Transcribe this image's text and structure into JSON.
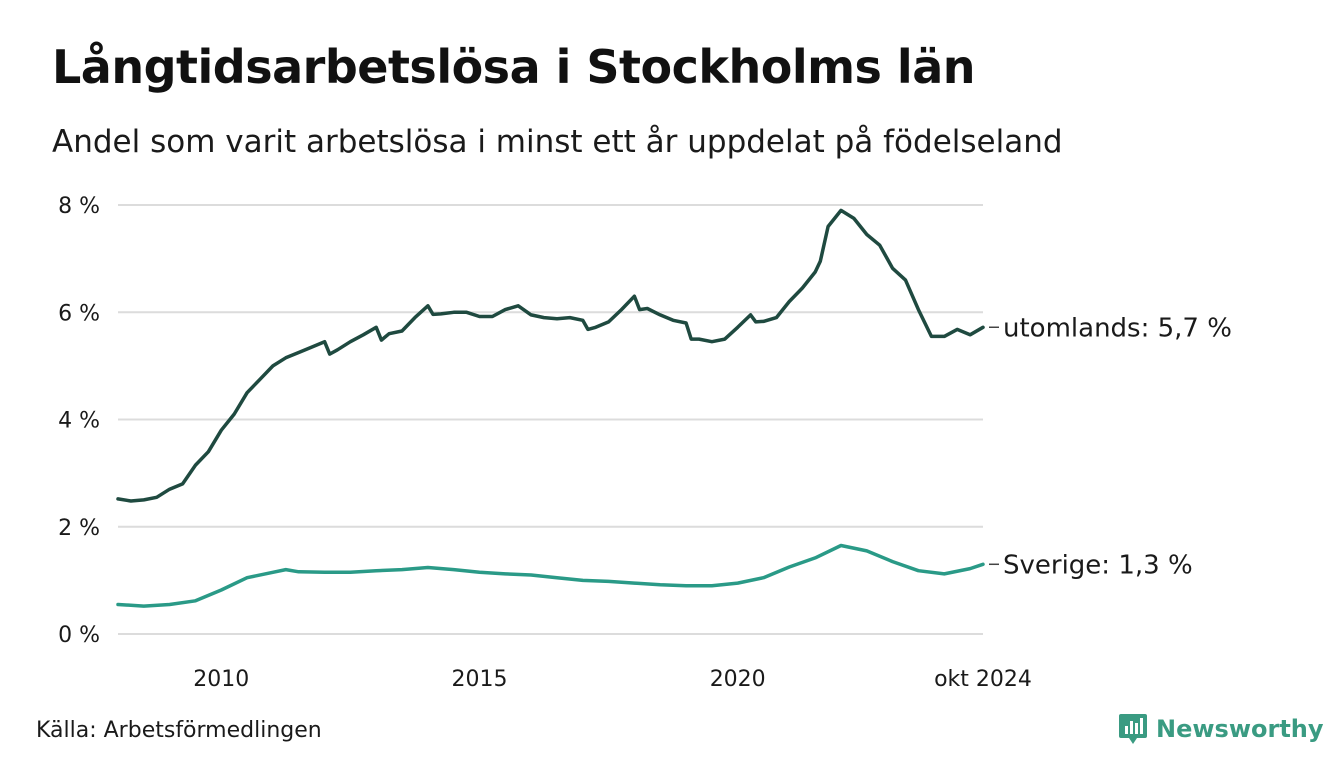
{
  "title": "Långtidsarbetslösa i Stockholms län",
  "subtitle": "Andel som varit arbetslösa i minst ett år uppdelat på födelseland",
  "source": "Källa: Arbetsförmedlingen",
  "brand": {
    "name": "Newsworthy",
    "logo_icon": "bar-chart-speech-bubble-icon",
    "color": "#3a9b82"
  },
  "chart_data": {
    "type": "line",
    "title": "Långtidsarbetslösa i Stockholms län",
    "xlabel": "",
    "ylabel": "",
    "xlim": [
      2008.0,
      2024.75
    ],
    "ylim": [
      0,
      8
    ],
    "grid": true,
    "y_ticks": [
      {
        "value": 0,
        "label": "0 %"
      },
      {
        "value": 2,
        "label": "2 %"
      },
      {
        "value": 4,
        "label": "4 %"
      },
      {
        "value": 6,
        "label": "6 %"
      },
      {
        "value": 8,
        "label": "8 %"
      }
    ],
    "x_ticks": [
      {
        "value": 2010,
        "label": "2010"
      },
      {
        "value": 2015,
        "label": "2015"
      },
      {
        "value": 2020,
        "label": "2020"
      },
      {
        "value": 2024.75,
        "label": "okt 2024"
      }
    ],
    "series": [
      {
        "name": "utomlands",
        "end_label": "utomlands: 5,7 %",
        "color": "#1f4a40",
        "points": [
          [
            2008.0,
            2.52
          ],
          [
            2008.25,
            2.48
          ],
          [
            2008.5,
            2.5
          ],
          [
            2008.75,
            2.55
          ],
          [
            2009.0,
            2.7
          ],
          [
            2009.25,
            2.8
          ],
          [
            2009.5,
            3.15
          ],
          [
            2009.75,
            3.4
          ],
          [
            2010.0,
            3.8
          ],
          [
            2010.25,
            4.1
          ],
          [
            2010.5,
            4.5
          ],
          [
            2010.75,
            4.75
          ],
          [
            2011.0,
            5.0
          ],
          [
            2011.25,
            5.15
          ],
          [
            2011.5,
            5.25
          ],
          [
            2011.75,
            5.35
          ],
          [
            2012.0,
            5.45
          ],
          [
            2012.1,
            5.22
          ],
          [
            2012.25,
            5.3
          ],
          [
            2012.5,
            5.45
          ],
          [
            2012.75,
            5.58
          ],
          [
            2013.0,
            5.72
          ],
          [
            2013.1,
            5.48
          ],
          [
            2013.25,
            5.6
          ],
          [
            2013.5,
            5.65
          ],
          [
            2013.75,
            5.9
          ],
          [
            2014.0,
            6.12
          ],
          [
            2014.1,
            5.96
          ],
          [
            2014.25,
            5.97
          ],
          [
            2014.5,
            6.0
          ],
          [
            2014.75,
            6.0
          ],
          [
            2015.0,
            5.92
          ],
          [
            2015.25,
            5.92
          ],
          [
            2015.5,
            6.05
          ],
          [
            2015.75,
            6.12
          ],
          [
            2016.0,
            5.95
          ],
          [
            2016.25,
            5.9
          ],
          [
            2016.5,
            5.88
          ],
          [
            2016.75,
            5.9
          ],
          [
            2017.0,
            5.85
          ],
          [
            2017.1,
            5.68
          ],
          [
            2017.25,
            5.72
          ],
          [
            2017.5,
            5.82
          ],
          [
            2017.75,
            6.05
          ],
          [
            2018.0,
            6.3
          ],
          [
            2018.1,
            6.05
          ],
          [
            2018.25,
            6.07
          ],
          [
            2018.5,
            5.95
          ],
          [
            2018.75,
            5.85
          ],
          [
            2019.0,
            5.8
          ],
          [
            2019.1,
            5.5
          ],
          [
            2019.25,
            5.5
          ],
          [
            2019.5,
            5.45
          ],
          [
            2019.75,
            5.5
          ],
          [
            2020.0,
            5.72
          ],
          [
            2020.25,
            5.95
          ],
          [
            2020.35,
            5.82
          ],
          [
            2020.5,
            5.83
          ],
          [
            2020.75,
            5.9
          ],
          [
            2021.0,
            6.2
          ],
          [
            2021.25,
            6.45
          ],
          [
            2021.5,
            6.75
          ],
          [
            2021.6,
            6.95
          ],
          [
            2021.75,
            7.6
          ],
          [
            2022.0,
            7.9
          ],
          [
            2022.25,
            7.75
          ],
          [
            2022.5,
            7.45
          ],
          [
            2022.75,
            7.25
          ],
          [
            2023.0,
            6.82
          ],
          [
            2023.25,
            6.6
          ],
          [
            2023.5,
            6.05
          ],
          [
            2023.75,
            5.55
          ],
          [
            2024.0,
            5.55
          ],
          [
            2024.25,
            5.68
          ],
          [
            2024.5,
            5.58
          ],
          [
            2024.75,
            5.72
          ]
        ]
      },
      {
        "name": "Sverige",
        "end_label": "Sverige: 1,3 %",
        "color": "#2a9a87",
        "points": [
          [
            2008.0,
            0.55
          ],
          [
            2008.5,
            0.52
          ],
          [
            2009.0,
            0.55
          ],
          [
            2009.5,
            0.62
          ],
          [
            2010.0,
            0.82
          ],
          [
            2010.5,
            1.05
          ],
          [
            2011.0,
            1.15
          ],
          [
            2011.25,
            1.2
          ],
          [
            2011.5,
            1.16
          ],
          [
            2012.0,
            1.15
          ],
          [
            2012.5,
            1.15
          ],
          [
            2013.0,
            1.18
          ],
          [
            2013.5,
            1.2
          ],
          [
            2014.0,
            1.24
          ],
          [
            2014.5,
            1.2
          ],
          [
            2015.0,
            1.15
          ],
          [
            2015.5,
            1.12
          ],
          [
            2016.0,
            1.1
          ],
          [
            2016.5,
            1.05
          ],
          [
            2017.0,
            1.0
          ],
          [
            2017.5,
            0.98
          ],
          [
            2018.0,
            0.95
          ],
          [
            2018.5,
            0.92
          ],
          [
            2019.0,
            0.9
          ],
          [
            2019.5,
            0.9
          ],
          [
            2020.0,
            0.95
          ],
          [
            2020.5,
            1.05
          ],
          [
            2021.0,
            1.25
          ],
          [
            2021.5,
            1.42
          ],
          [
            2022.0,
            1.65
          ],
          [
            2022.5,
            1.55
          ],
          [
            2023.0,
            1.35
          ],
          [
            2023.5,
            1.18
          ],
          [
            2024.0,
            1.12
          ],
          [
            2024.5,
            1.22
          ],
          [
            2024.75,
            1.3
          ]
        ]
      }
    ]
  }
}
